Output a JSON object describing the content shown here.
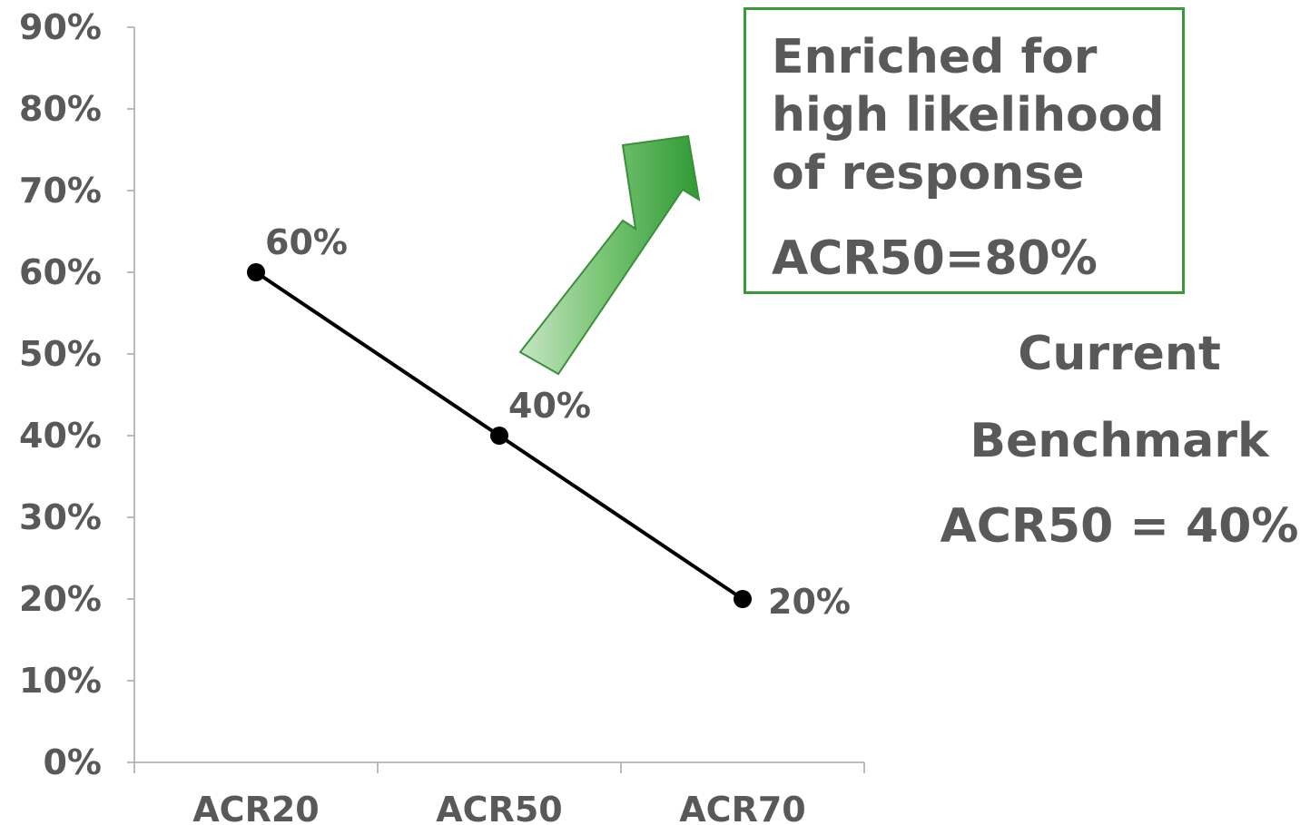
{
  "chart_data": {
    "type": "line",
    "categories": [
      "ACR20",
      "ACR50",
      "ACR70"
    ],
    "series": [
      {
        "values": [
          60,
          40,
          20
        ],
        "labels": [
          "60%",
          "40%",
          "20%"
        ]
      }
    ],
    "ylim": [
      0,
      90
    ],
    "ytick_step": 10,
    "ytick_labels": [
      "0%",
      "10%",
      "20%",
      "30%",
      "40%",
      "50%",
      "60%",
      "70%",
      "80%",
      "90%"
    ],
    "title": "",
    "xlabel": "",
    "ylabel": "",
    "grid": false,
    "line_color": "#000000"
  },
  "callout": {
    "lines": [
      "Enriched for",
      "high likelihood",
      "of response"
    ],
    "result": "ACR50=80%",
    "border_color": "#3a9a3a"
  },
  "benchmark": {
    "line1": "Current",
    "line2": "Benchmark",
    "line3": "ACR50 = 40%"
  },
  "arrow": {
    "icon": "up-right-arrow-icon",
    "color": "#4caf50"
  }
}
